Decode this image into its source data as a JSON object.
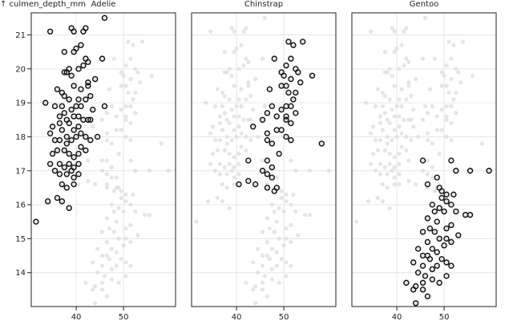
{
  "chart_data": {
    "type": "scatter",
    "ylabel": "↑ culmen_depth_mm",
    "xlabel": "",
    "x_ticks": [
      40,
      50
    ],
    "y_ticks": [
      14,
      15,
      16,
      17,
      18,
      19,
      20,
      21
    ],
    "xlim": [
      30.5,
      61
    ],
    "ylim": [
      13.0,
      21.65
    ],
    "grid": true,
    "background": "all penguins shown in light gray in every facet",
    "colors": {
      "background_points": "#dcdcdc",
      "highlight_points": "#111111",
      "frame": "#222222"
    },
    "facets": [
      {
        "title": "Adelie",
        "points": [
          [
            46,
            21.5
          ],
          [
            34.5,
            21.1
          ],
          [
            39,
            21.2
          ],
          [
            39.5,
            21.1
          ],
          [
            41.5,
            21.1
          ],
          [
            42,
            21.2
          ],
          [
            41,
            20.7
          ],
          [
            40,
            20.6
          ],
          [
            39.5,
            20.5
          ],
          [
            37.5,
            20.5
          ],
          [
            42,
            20.3
          ],
          [
            42.5,
            20.2
          ],
          [
            45.5,
            20.3
          ],
          [
            41.5,
            20.1
          ],
          [
            40.5,
            20.0
          ],
          [
            38.5,
            20.0
          ],
          [
            38,
            19.9
          ],
          [
            39,
            19.8
          ],
          [
            37.5,
            19.9
          ],
          [
            44,
            19.7
          ],
          [
            42.5,
            19.6
          ],
          [
            42.5,
            19.5
          ],
          [
            36,
            19.4
          ],
          [
            37,
            19.3
          ],
          [
            39.5,
            19.5
          ],
          [
            41,
            19.4
          ],
          [
            37.5,
            19.2
          ],
          [
            38.5,
            19.1
          ],
          [
            40.5,
            19.1
          ],
          [
            42,
            19.1
          ],
          [
            43,
            19.2
          ],
          [
            33.5,
            19.0
          ],
          [
            35.5,
            18.9
          ],
          [
            37,
            18.9
          ],
          [
            39,
            18.8
          ],
          [
            40,
            18.9
          ],
          [
            41,
            18.9
          ],
          [
            43.5,
            18.8
          ],
          [
            46,
            18.9
          ],
          [
            36.5,
            18.6
          ],
          [
            37.5,
            18.7
          ],
          [
            38,
            18.5
          ],
          [
            39.5,
            18.6
          ],
          [
            40.5,
            18.6
          ],
          [
            41.5,
            18.5
          ],
          [
            42.5,
            18.5
          ],
          [
            43,
            18.5
          ],
          [
            35,
            18.3
          ],
          [
            37,
            18.2
          ],
          [
            38.5,
            18.4
          ],
          [
            39.5,
            18.2
          ],
          [
            40.5,
            18.3
          ],
          [
            41,
            18.1
          ],
          [
            42,
            18.0
          ],
          [
            34.5,
            18.1
          ],
          [
            35.5,
            17.9
          ],
          [
            36.5,
            17.9
          ],
          [
            38,
            17.8
          ],
          [
            39,
            17.9
          ],
          [
            40,
            18.0
          ],
          [
            41,
            17.7
          ],
          [
            43,
            17.9
          ],
          [
            44.5,
            18.0
          ],
          [
            35,
            17.5
          ],
          [
            36,
            17.6
          ],
          [
            37.5,
            17.6
          ],
          [
            38.5,
            17.5
          ],
          [
            39.5,
            17.4
          ],
          [
            40.5,
            17.5
          ],
          [
            36.5,
            17.2
          ],
          [
            37.5,
            17.1
          ],
          [
            38.5,
            17.2
          ],
          [
            39.5,
            17.1
          ],
          [
            40.5,
            17.2
          ],
          [
            34.5,
            17.2
          ],
          [
            35.5,
            17.0
          ],
          [
            36.5,
            16.9
          ],
          [
            38,
            16.9
          ],
          [
            39.5,
            16.8
          ],
          [
            40.5,
            16.9
          ],
          [
            37,
            16.6
          ],
          [
            38,
            16.5
          ],
          [
            39.5,
            16.6
          ],
          [
            36,
            16.2
          ],
          [
            37,
            16.1
          ],
          [
            34,
            16.1
          ],
          [
            38.5,
            15.9
          ],
          [
            31.5,
            15.5
          ],
          [
            38,
            18.0
          ],
          [
            39,
            17.0
          ],
          [
            42,
            17.6
          ],
          [
            36.5,
            18.4
          ]
        ]
      },
      {
        "title": "Chinstrap",
        "points": [
          [
            51,
            20.8
          ],
          [
            52,
            20.7
          ],
          [
            54,
            20.8
          ],
          [
            48,
            20.3
          ],
          [
            51.5,
            20.3
          ],
          [
            50.5,
            20.1
          ],
          [
            52.5,
            20.0
          ],
          [
            49.5,
            19.9
          ],
          [
            53,
            19.9
          ],
          [
            50,
            19.8
          ],
          [
            51.5,
            19.7
          ],
          [
            53.5,
            19.6
          ],
          [
            56,
            19.8
          ],
          [
            49.5,
            19.5
          ],
          [
            50.5,
            19.5
          ],
          [
            47,
            19.4
          ],
          [
            51,
            19.3
          ],
          [
            52,
            19.1
          ],
          [
            50.5,
            18.9
          ],
          [
            51.5,
            18.9
          ],
          [
            47.5,
            18.9
          ],
          [
            49.5,
            18.8
          ],
          [
            52.5,
            18.7
          ],
          [
            46.5,
            18.7
          ],
          [
            48.5,
            18.6
          ],
          [
            50.5,
            18.6
          ],
          [
            45.5,
            18.5
          ],
          [
            51.5,
            18.4
          ],
          [
            43.5,
            18.3
          ],
          [
            49.5,
            18.2
          ],
          [
            46.5,
            18.1
          ],
          [
            48.5,
            18.2
          ],
          [
            50.5,
            18.0
          ],
          [
            51.5,
            17.9
          ],
          [
            46.5,
            17.9
          ],
          [
            47.5,
            17.8
          ],
          [
            58,
            17.8
          ],
          [
            42.5,
            17.3
          ],
          [
            49,
            17.5
          ],
          [
            46.5,
            17.3
          ],
          [
            47.5,
            17.1
          ],
          [
            45.5,
            17.0
          ],
          [
            46.5,
            16.9
          ],
          [
            47.5,
            16.8
          ],
          [
            42.5,
            16.7
          ],
          [
            44,
            16.6
          ],
          [
            40.5,
            16.6
          ],
          [
            48.5,
            16.5
          ],
          [
            48,
            16.4
          ],
          [
            50.5,
            18.5
          ],
          [
            52.5,
            19.3
          ],
          [
            46.5,
            16.5
          ]
        ]
      },
      {
        "title": "Gentoo",
        "points": [
          [
            45.5,
            17.3
          ],
          [
            51.5,
            17.3
          ],
          [
            52.5,
            17.0
          ],
          [
            55.5,
            17.0
          ],
          [
            59.5,
            17.0
          ],
          [
            48.5,
            16.8
          ],
          [
            46.5,
            16.6
          ],
          [
            49,
            16.5
          ],
          [
            50.5,
            16.3
          ],
          [
            52,
            16.3
          ],
          [
            49.5,
            16.2
          ],
          [
            50.5,
            16.1
          ],
          [
            51.5,
            16.0
          ],
          [
            47.5,
            16.0
          ],
          [
            49,
            15.9
          ],
          [
            48,
            15.8
          ],
          [
            50,
            15.8
          ],
          [
            52.5,
            15.8
          ],
          [
            54.5,
            15.7
          ],
          [
            55.5,
            15.7
          ],
          [
            46.5,
            15.6
          ],
          [
            48.5,
            15.5
          ],
          [
            51.5,
            15.4
          ],
          [
            50.5,
            15.3
          ],
          [
            47,
            15.3
          ],
          [
            45.5,
            15.2
          ],
          [
            49,
            15.0
          ],
          [
            50.5,
            15.0
          ],
          [
            51.5,
            14.9
          ],
          [
            46.5,
            14.9
          ],
          [
            44.5,
            14.7
          ],
          [
            47.5,
            14.7
          ],
          [
            48.5,
            14.6
          ],
          [
            45.5,
            14.5
          ],
          [
            46.5,
            14.5
          ],
          [
            49.5,
            14.4
          ],
          [
            50.5,
            14.3
          ],
          [
            51.5,
            14.2
          ],
          [
            45.5,
            14.2
          ],
          [
            47.5,
            14.1
          ],
          [
            48.5,
            14.2
          ],
          [
            43.5,
            14.3
          ],
          [
            44.5,
            14.0
          ],
          [
            46,
            13.9
          ],
          [
            47.5,
            13.8
          ],
          [
            49,
            13.7
          ],
          [
            50.5,
            13.9
          ],
          [
            42,
            13.7
          ],
          [
            43.5,
            13.5
          ],
          [
            45.5,
            13.5
          ],
          [
            46.5,
            13.3
          ],
          [
            44,
            13.1
          ],
          [
            45.5,
            13.7
          ],
          [
            49.5,
            16.4
          ],
          [
            48,
            15.2
          ],
          [
            53,
            15.1
          ],
          [
            50,
            14.8
          ],
          [
            44,
            13.6
          ],
          [
            47,
            14.4
          ]
        ]
      }
    ]
  }
}
